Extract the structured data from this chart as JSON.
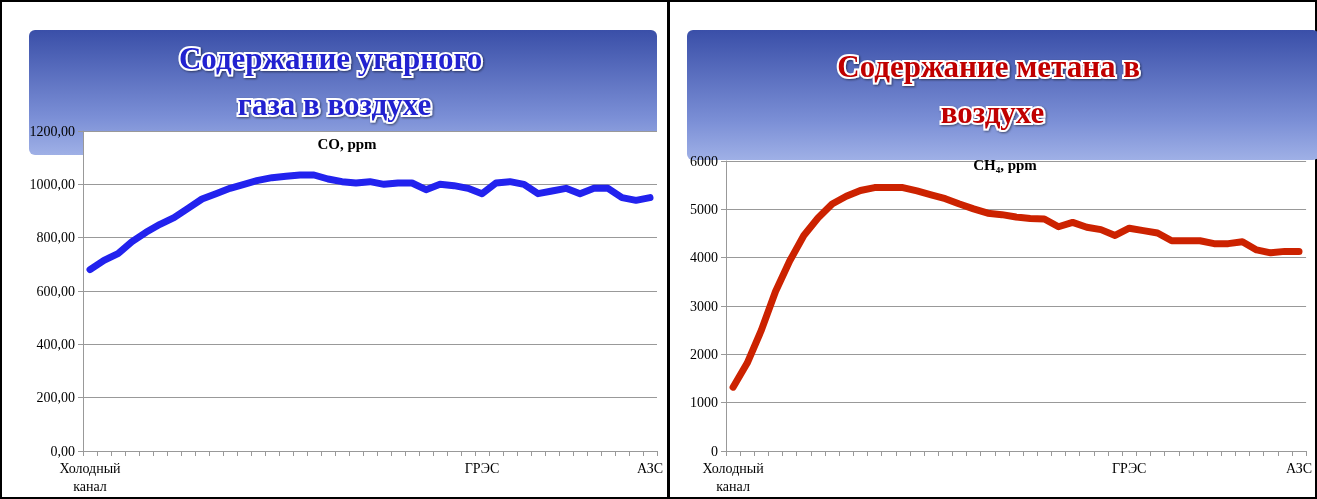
{
  "chart_data": [
    {
      "type": "line",
      "title": "Содержание угарного газа в воздухе",
      "subtitle": "CO, ppm",
      "categories": [
        "Холодный канал",
        null,
        null,
        null,
        null,
        null,
        null,
        null,
        null,
        null,
        null,
        null,
        null,
        null,
        null,
        null,
        null,
        null,
        null,
        null,
        null,
        null,
        null,
        null,
        null,
        null,
        null,
        null,
        "ГРЭС",
        null,
        null,
        null,
        null,
        null,
        null,
        null,
        null,
        null,
        null,
        null,
        "АЗС"
      ],
      "series": [
        {
          "color": "#2222ee",
          "values": [
            680,
            715,
            740,
            785,
            820,
            850,
            875,
            910,
            945,
            965,
            985,
            1000,
            1015,
            1025,
            1030,
            1035,
            1035,
            1020,
            1010,
            1005,
            1010,
            1000,
            1005,
            1005,
            980,
            1000,
            995,
            985,
            965,
            1005,
            1010,
            1000,
            965,
            975,
            985,
            965,
            985,
            985,
            950,
            940,
            950
          ]
        }
      ],
      "ylim": [
        0,
        1200
      ],
      "yticks": [
        {
          "value": 0,
          "label": "0,00"
        },
        {
          "value": 200,
          "label": "200,00"
        },
        {
          "value": 400,
          "label": "400,00"
        },
        {
          "value": 600,
          "label": "600,00"
        },
        {
          "value": 800,
          "label": "800,00"
        },
        {
          "value": 1000,
          "label": "1000,00"
        },
        {
          "value": 1200,
          "label": "1200,00"
        }
      ],
      "grid": "y",
      "marker": "none",
      "line_style": "solid"
    },
    {
      "type": "line",
      "title": "Содержание метана в воздухе",
      "subtitle": "CH₄, ppm",
      "categories": [
        "Холодный канал",
        null,
        null,
        null,
        null,
        null,
        null,
        null,
        null,
        null,
        null,
        null,
        null,
        null,
        null,
        null,
        null,
        null,
        null,
        null,
        null,
        null,
        null,
        null,
        null,
        null,
        null,
        null,
        "ГРЭС",
        null,
        null,
        null,
        null,
        null,
        null,
        null,
        null,
        null,
        null,
        null,
        "АЗС"
      ],
      "series": [
        {
          "color": "#cc2200",
          "values": [
            1320,
            1820,
            2500,
            3300,
            3930,
            4460,
            4820,
            5110,
            5270,
            5390,
            5450,
            5450,
            5450,
            5380,
            5300,
            5220,
            5110,
            5010,
            4920,
            4890,
            4840,
            4810,
            4800,
            4640,
            4730,
            4630,
            4580,
            4460,
            4610,
            4560,
            4510,
            4350,
            4350,
            4350,
            4290,
            4290,
            4330,
            4160,
            4100,
            4130,
            4130
          ]
        }
      ],
      "ylim": [
        0,
        6000
      ],
      "yticks": [
        0,
        1000,
        2000,
        3000,
        4000,
        5000,
        6000
      ],
      "grid": "y",
      "marker": "none",
      "line_style": "solid"
    }
  ]
}
